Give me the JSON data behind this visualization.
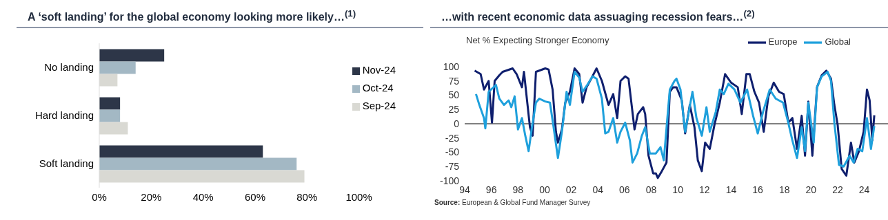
{
  "chart_data": [
    {
      "type": "bar",
      "orientation": "horizontal",
      "title": "A ‘soft landing’ for the global economy looking more likely…$^{(1)}$",
      "categories": [
        "No landing",
        "Hard landing",
        "Soft landing"
      ],
      "series": [
        {
          "name": "Nov-24",
          "color": "#2d3648",
          "values": [
            25,
            8,
            63
          ]
        },
        {
          "name": "Oct-24",
          "color": "#a3b8c4",
          "values": [
            14,
            8,
            76
          ]
        },
        {
          "name": "Sep-24",
          "color": "#d9d9d3",
          "values": [
            7,
            11,
            79
          ]
        }
      ],
      "xlim": [
        0,
        100
      ],
      "xticks": [
        {
          "value": 0,
          "label": "0%"
        },
        {
          "value": 20,
          "label": "20%"
        },
        {
          "value": 40,
          "label": "40%"
        },
        {
          "value": 60,
          "label": "60%"
        },
        {
          "value": 80,
          "label": "80%"
        },
        {
          "value": 100,
          "label": "100%"
        }
      ],
      "grid": false,
      "legend": "top right"
    },
    {
      "type": "line",
      "title": "…with recent economic data assuaging recession fears…$^{(2)}$",
      "ylabel": "Net % Expecting Stronger Economy",
      "series": [
        {
          "name": "Europe",
          "color": "#0f1f6e",
          "x": [
            1994.75,
            1995.2,
            1995.45,
            1995.8,
            1996.05,
            1996.25,
            1996.6,
            1996.85,
            1997.6,
            1997.9,
            1998.3,
            1998.45,
            1998.7,
            1998.9,
            1999.1,
            1999.35,
            2000.05,
            2000.3,
            2000.6,
            2000.85,
            2001.0,
            2001.3,
            2001.55,
            2001.9,
            2002.25,
            2002.6,
            2002.85,
            2003.15,
            2003.5,
            2003.9,
            2004.3,
            2004.8,
            2005.15,
            2005.45,
            2005.7,
            2006.05,
            2006.3,
            2006.75,
            2007.0,
            2007.4,
            2007.55,
            2007.8,
            2008.15,
            2008.35,
            2008.5,
            2008.8,
            2009.15,
            2009.4,
            2009.65,
            2009.9,
            2010.3,
            2010.55,
            2010.9,
            2011.25,
            2011.5,
            2011.8,
            2012.05,
            2012.4,
            2012.75,
            2013.15,
            2013.55,
            2014.0,
            2014.5,
            2014.8,
            2015.15,
            2015.4,
            2015.75,
            2016.1,
            2016.45,
            2016.8,
            2017.2,
            2017.6,
            2017.95,
            2018.3,
            2018.6,
            2018.95,
            2019.3,
            2019.55,
            2019.8,
            2020.1,
            2020.45,
            2020.8,
            2021.15,
            2021.5,
            2021.75,
            2022.0,
            2022.3,
            2022.65,
            2023.0,
            2023.25,
            2023.6,
            2023.95,
            2024.2,
            2024.4,
            2024.6,
            2024.75
          ],
          "values": [
            93,
            87,
            60,
            75,
            2,
            75,
            85,
            91,
            97,
            87,
            64,
            91,
            37,
            -6,
            -21,
            91,
            97,
            95,
            60,
            -14,
            -33,
            -10,
            37,
            56,
            97,
            87,
            37,
            64,
            79,
            97,
            75,
            33,
            52,
            10,
            75,
            83,
            79,
            -10,
            17,
            29,
            17,
            -56,
            -87,
            -87,
            -95,
            -83,
            -68,
            56,
            64,
            64,
            41,
            -17,
            33,
            -6,
            -64,
            -83,
            -33,
            -44,
            -2,
            37,
            87,
            72,
            64,
            17,
            87,
            87,
            56,
            37,
            -14,
            48,
            72,
            56,
            52,
            2,
            10,
            -44,
            14,
            -56,
            39,
            -56,
            64,
            85,
            93,
            79,
            33,
            -2,
            -79,
            -91,
            -33,
            -68,
            -48,
            -14,
            60,
            41,
            -29,
            15
          ]
        },
        {
          "name": "Global",
          "color": "#1ea0dc",
          "x": [
            1994.85,
            1995.1,
            1995.45,
            1995.55,
            1995.8,
            1996.35,
            1996.6,
            1996.95,
            1997.3,
            1997.5,
            1997.75,
            1998.0,
            1998.3,
            1998.55,
            1998.8,
            1999.05,
            1999.35,
            1999.6,
            2000.05,
            2000.4,
            2000.65,
            2001.0,
            2001.3,
            2001.65,
            2001.9,
            2002.25,
            2002.6,
            2002.85,
            2003.2,
            2003.6,
            2003.9,
            2004.3,
            2004.55,
            2004.8,
            2005.15,
            2005.45,
            2005.7,
            2006.05,
            2006.4,
            2006.6,
            2006.95,
            2007.3,
            2007.55,
            2007.9,
            2008.35,
            2008.7,
            2008.95,
            2009.2,
            2009.4,
            2009.75,
            2009.9,
            2010.2,
            2010.55,
            2011.1,
            2011.4,
            2011.8,
            2012.15,
            2012.4,
            2012.85,
            2013.15,
            2013.45,
            2013.8,
            2014.25,
            2014.7,
            2015.2,
            2015.65,
            2016.0,
            2016.4,
            2016.9,
            2017.35,
            2017.9,
            2018.25,
            2018.6,
            2018.95,
            2019.3,
            2019.55,
            2019.8,
            2020.2,
            2020.45,
            2020.8,
            2021.25,
            2021.5,
            2021.75,
            2022.1,
            2022.45,
            2022.9,
            2023.2,
            2023.5,
            2023.85,
            2024.2,
            2024.5,
            2024.75
          ],
          "values": [
            52,
            33,
            10,
            -8,
            56,
            68,
            44,
            33,
            41,
            29,
            48,
            -10,
            10,
            -21,
            -48,
            -6,
            37,
            44,
            39,
            37,
            -2,
            -60,
            -14,
            56,
            33,
            91,
            81,
            56,
            68,
            83,
            79,
            44,
            -17,
            -14,
            10,
            -33,
            -14,
            2,
            -29,
            -68,
            -52,
            -21,
            -6,
            -52,
            -52,
            -41,
            -64,
            6,
            60,
            75,
            79,
            60,
            -14,
            56,
            10,
            -21,
            29,
            -14,
            21,
            60,
            52,
            70,
            60,
            37,
            60,
            14,
            -17,
            21,
            60,
            44,
            37,
            6,
            -29,
            -60,
            -6,
            -48,
            37,
            -33,
            64,
            83,
            91,
            75,
            2,
            -72,
            -75,
            -56,
            -68,
            -44,
            -48,
            10,
            -44,
            -4
          ]
        }
      ],
      "xlim": [
        1994,
        2026.4
      ],
      "xticks": [
        {
          "value": 1994,
          "label": "94"
        },
        {
          "value": 1996,
          "label": "96"
        },
        {
          "value": 1998,
          "label": "98"
        },
        {
          "value": 2000,
          "label": "00"
        },
        {
          "value": 2002,
          "label": "02"
        },
        {
          "value": 2004,
          "label": "04"
        },
        {
          "value": 2006,
          "label": "06"
        },
        {
          "value": 2008,
          "label": "08"
        },
        {
          "value": 2010,
          "label": "10"
        },
        {
          "value": 2012,
          "label": "12"
        },
        {
          "value": 2014,
          "label": "14"
        },
        {
          "value": 2016,
          "label": "16"
        },
        {
          "value": 2018,
          "label": "18"
        },
        {
          "value": 2020,
          "label": "20"
        },
        {
          "value": 2022,
          "label": "22"
        },
        {
          "value": 2024,
          "label": "24"
        }
      ],
      "ylim": [
        -100,
        100
      ],
      "yticks": [
        -100,
        -75,
        -50,
        -25,
        0,
        25,
        50,
        75,
        100
      ],
      "ref_lines": [
        {
          "axis": "y",
          "value": 0,
          "color": "#000000"
        }
      ],
      "grid": false,
      "legend": "top right",
      "marker": "none",
      "line_style": "solid",
      "annotations": [
        "Source: European & Global Fund Manager Survey"
      ]
    }
  ]
}
